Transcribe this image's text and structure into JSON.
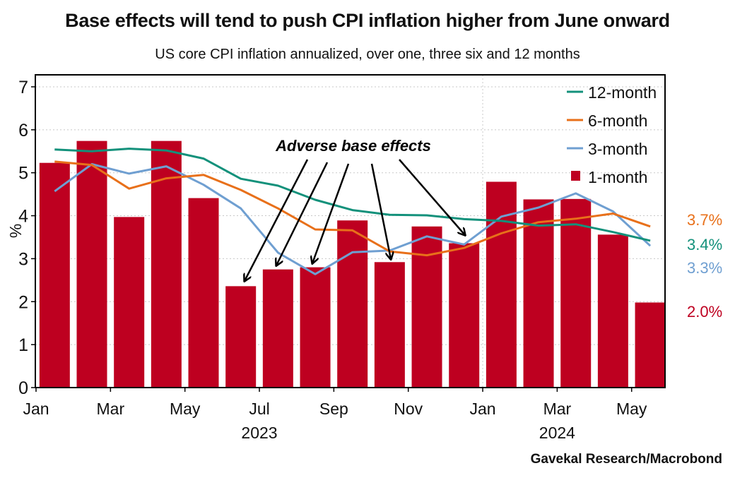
{
  "chart_data": {
    "type": "bar",
    "title": "Base effects will tend to push CPI inflation higher from June onward",
    "subtitle": "US core CPI inflation annualized, over one, three six and 12 months",
    "source": "Gavekal Research/Macrobond",
    "ylabel": "%",
    "ylim": [
      0,
      7
    ],
    "yticks": [
      "0",
      "1",
      "2",
      "3",
      "4",
      "5",
      "6",
      "7"
    ],
    "grid": true,
    "legend_position": "top-right",
    "categories": [
      "Jan 2023",
      "Feb 2023",
      "Mar 2023",
      "Apr 2023",
      "May 2023",
      "Jun 2023",
      "Jul 2023",
      "Aug 2023",
      "Sep 2023",
      "Oct 2023",
      "Nov 2023",
      "Dec 2023",
      "Jan 2024",
      "Feb 2024",
      "Mar 2024",
      "Apr 2024",
      "May 2024"
    ],
    "xtick_labels": [
      {
        "label": "Jan",
        "month_index": 0
      },
      {
        "label": "Mar",
        "month_index": 2
      },
      {
        "label": "May",
        "month_index": 4
      },
      {
        "label": "Jul",
        "month_index": 6
      },
      {
        "label": "Sep",
        "month_index": 8
      },
      {
        "label": "Nov",
        "month_index": 10
      },
      {
        "label": "Jan",
        "month_index": 12
      },
      {
        "label": "Mar",
        "month_index": 14
      },
      {
        "label": "May",
        "month_index": 16
      }
    ],
    "year_labels": [
      {
        "label": "2023",
        "month_index": 6
      },
      {
        "label": "2024",
        "month_index": 14
      }
    ],
    "series": [
      {
        "name": "12-month",
        "kind": "line",
        "color": "#13917b",
        "end_label": "3.4%",
        "values": [
          5.54,
          5.5,
          5.56,
          5.52,
          5.33,
          4.86,
          4.7,
          4.37,
          4.13,
          4.02,
          4.01,
          3.92,
          3.88,
          3.77,
          3.8,
          3.62,
          3.42
        ]
      },
      {
        "name": "6-month",
        "kind": "line",
        "color": "#e8701a",
        "end_label": "3.7%",
        "values": [
          5.26,
          5.18,
          4.63,
          4.87,
          4.95,
          4.6,
          4.17,
          3.68,
          3.66,
          3.17,
          3.08,
          3.25,
          3.59,
          3.85,
          3.93,
          4.05,
          3.75
        ]
      },
      {
        "name": "3-month",
        "kind": "line",
        "color": "#6f9fd1",
        "end_label": "3.3%",
        "values": [
          4.57,
          5.2,
          4.98,
          5.15,
          4.72,
          4.17,
          3.14,
          2.64,
          3.15,
          3.19,
          3.52,
          3.33,
          3.98,
          4.19,
          4.52,
          4.1,
          3.3
        ]
      },
      {
        "name": "1-month",
        "kind": "bar",
        "color": "#be0020",
        "end_label": "2.0%",
        "values": [
          5.23,
          5.74,
          3.97,
          5.74,
          4.41,
          2.36,
          2.75,
          2.8,
          3.89,
          2.92,
          3.75,
          3.36,
          4.79,
          4.38,
          4.39,
          3.56,
          1.98
        ]
      }
    ],
    "annotation": {
      "text": "Adverse base effects",
      "arrow_targets": [
        "Jun 2023",
        "Jul 2023",
        "Aug 2023",
        "Oct 2023",
        "Dec 2023"
      ]
    }
  }
}
